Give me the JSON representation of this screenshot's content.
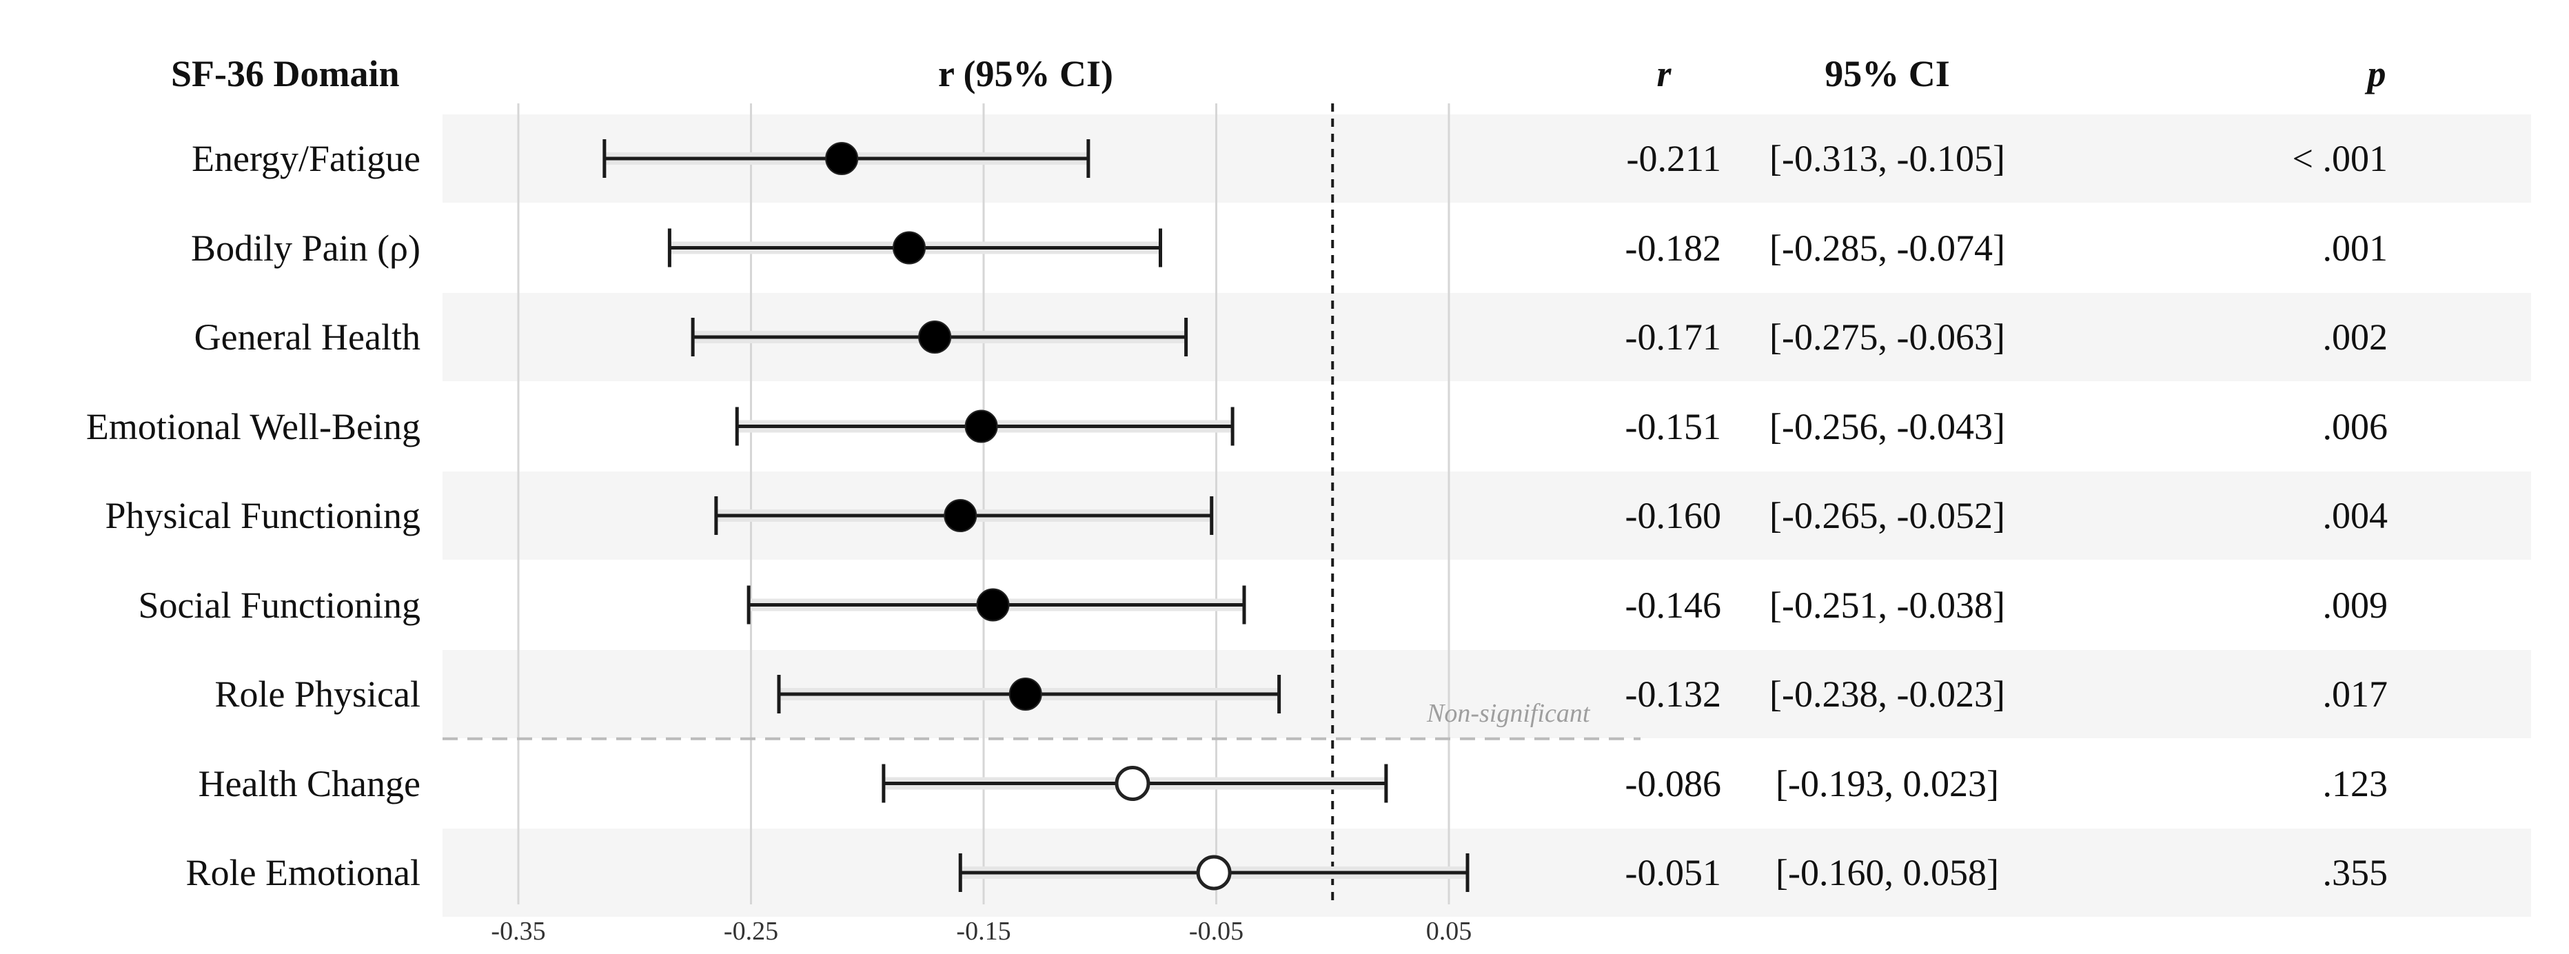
{
  "headers": {
    "domain": "SF-36 Domain",
    "r_ci": "r (95% CI)",
    "r": "r",
    "ci": "95% CI",
    "p": "p"
  },
  "separator_label": "Non-significant",
  "colors": {
    "significant_marker": "#000000",
    "nonsignificant_marker": "#ffffff",
    "ci_line": "#1a1a1a",
    "reference_line": "#1a1a1a",
    "separator": "#bbbbbb",
    "row_band": "#f5f5f5",
    "grid": "#d6d6d6"
  },
  "chart_data": {
    "type": "forest",
    "title": "",
    "xlabel": "",
    "xlim": [
      -0.38,
      0.06
    ],
    "x_ticks": [
      -0.35,
      -0.25,
      -0.15,
      -0.05,
      0.05
    ],
    "x_tick_labels": [
      "-0.35",
      "-0.25",
      "-0.15",
      "-0.05",
      "0.05"
    ],
    "reference_line_x": 0,
    "grid": true,
    "rows": [
      {
        "label": "Energy/Fatigue",
        "r": -0.211,
        "ci_low": -0.313,
        "ci_high": -0.105,
        "r_text": "-0.211",
        "ci_text": "[-0.313, -0.105]",
        "p_text": "< .001",
        "significant": true
      },
      {
        "label": "Bodily Pain (ρ)",
        "r": -0.182,
        "ci_low": -0.285,
        "ci_high": -0.074,
        "r_text": "-0.182",
        "ci_text": "[-0.285, -0.074]",
        "p_text": ".001",
        "significant": true
      },
      {
        "label": "General Health",
        "r": -0.171,
        "ci_low": -0.275,
        "ci_high": -0.063,
        "r_text": "-0.171",
        "ci_text": "[-0.275, -0.063]",
        "p_text": ".002",
        "significant": true
      },
      {
        "label": "Emotional Well-Being",
        "r": -0.151,
        "ci_low": -0.256,
        "ci_high": -0.043,
        "r_text": "-0.151",
        "ci_text": "[-0.256, -0.043]",
        "p_text": ".006",
        "significant": true
      },
      {
        "label": "Physical Functioning",
        "r": -0.16,
        "ci_low": -0.265,
        "ci_high": -0.052,
        "r_text": "-0.160",
        "ci_text": "[-0.265, -0.052]",
        "p_text": ".004",
        "significant": true
      },
      {
        "label": "Social Functioning",
        "r": -0.146,
        "ci_low": -0.251,
        "ci_high": -0.038,
        "r_text": "-0.146",
        "ci_text": "[-0.251, -0.038]",
        "p_text": ".009",
        "significant": true
      },
      {
        "label": "Role Physical",
        "r": -0.132,
        "ci_low": -0.238,
        "ci_high": -0.023,
        "r_text": "-0.132",
        "ci_text": "[-0.238, -0.023]",
        "p_text": ".017",
        "significant": true
      },
      {
        "label": "Health Change",
        "r": -0.086,
        "ci_low": -0.193,
        "ci_high": 0.023,
        "r_text": "-0.086",
        "ci_text": "[-0.193, 0.023]",
        "p_text": ".123",
        "significant": false
      },
      {
        "label": "Role Emotional",
        "r": -0.051,
        "ci_low": -0.16,
        "ci_high": 0.058,
        "r_text": "-0.051",
        "ci_text": "[-0.160, 0.058]",
        "p_text": ".355",
        "significant": false
      }
    ]
  }
}
